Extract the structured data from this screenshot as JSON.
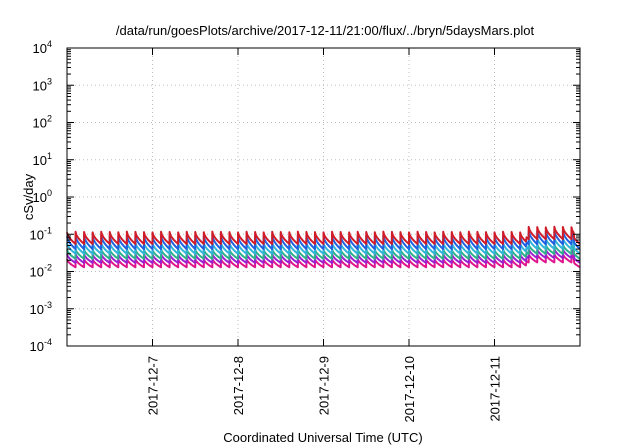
{
  "chart_data": {
    "type": "line",
    "title": "/data/run/goesPlots/archive/2017-12-11/21:00/flux/../bryn/5daysMars.plot",
    "xlabel": "Coordinated Universal Time (UTC)",
    "ylabel": "cSv/day",
    "yscale": "log",
    "ylim_exponents": [
      -4,
      4
    ],
    "ytick_base": "10",
    "ytick_exponents": [
      "-4",
      "-3",
      "-2",
      "-1",
      "0",
      "1",
      "2",
      "3",
      "4"
    ],
    "xlim": [
      "2017-12-06",
      "2017-12-12"
    ],
    "xtick_dates": [
      "2017-12-06",
      "2017-12-07",
      "2017-12-08",
      "2017-12-09",
      "2017-12-10",
      "2017-12-11",
      "2017-12-12"
    ],
    "xtick_labels": [
      "",
      "2017-12-7",
      "2017-12-8",
      "2017-12-9",
      "2017-12-10",
      "2017-12-11",
      ""
    ],
    "grid": true,
    "cycles_per_day": 10,
    "series": [
      {
        "color": "#e0148c",
        "low": 0.013,
        "high": 0.022
      },
      {
        "color": "#9b20d0",
        "low": 0.017,
        "high": 0.03
      },
      {
        "color": "#2cb08c",
        "low": 0.022,
        "high": 0.04
      },
      {
        "color": "#30b4d8",
        "low": 0.03,
        "high": 0.06
      },
      {
        "color": "#2060e0",
        "low": 0.04,
        "high": 0.09
      },
      {
        "color": "#d01c28",
        "low": 0.055,
        "high": 0.115
      }
    ],
    "feature": {
      "date": "2017-12-11T09:00",
      "duration_days": 0.55,
      "factor": 1.35
    }
  }
}
